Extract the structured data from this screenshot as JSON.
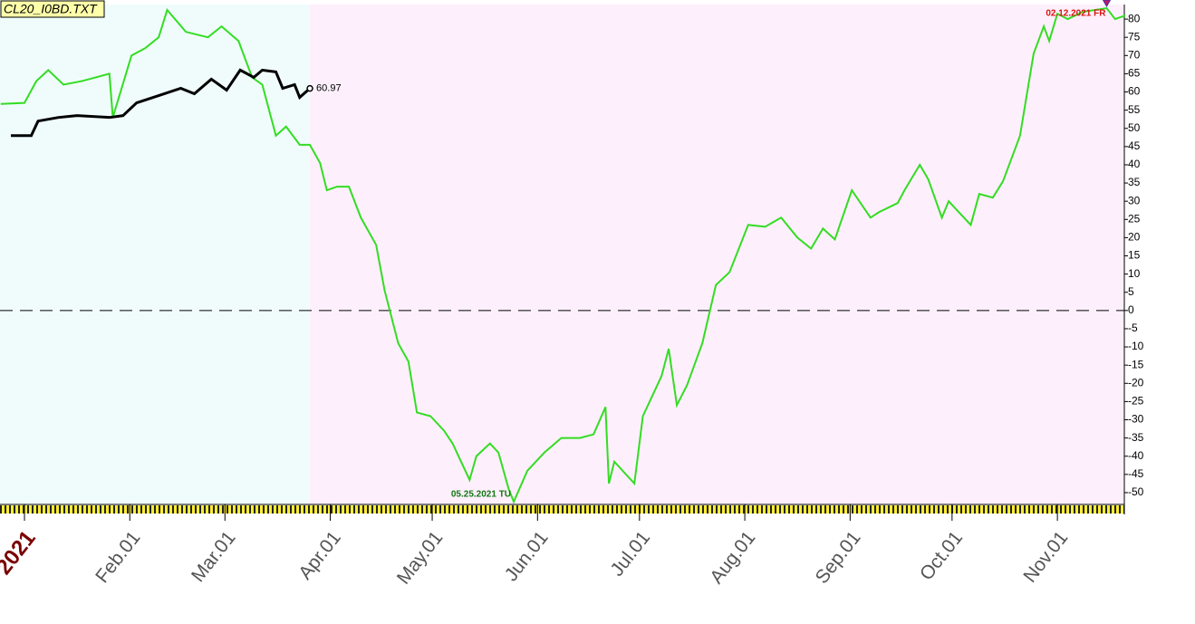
{
  "chart_data": {
    "type": "line",
    "title": "CL20_I0BD.TXT",
    "x": [
      -7,
      0,
      3.5,
      7,
      11.5,
      17,
      25,
      26,
      31.5,
      35.5,
      39.5,
      42,
      47.5,
      54,
      58,
      63,
      67,
      70,
      74,
      77,
      81,
      84,
      87,
      89,
      92,
      95.5,
      99,
      103.5,
      106,
      110,
      113,
      115.5,
      119.5,
      123.5,
      126,
      131,
      133,
      137,
      139.5,
      142.5,
      144,
      148,
      153,
      158,
      163.5,
      167.5,
      171,
      172,
      173.6,
      179.5,
      182,
      187.5,
      189.6,
      192,
      195,
      199.5,
      203.5,
      207.5,
      213,
      218,
      222.7,
      227.5,
      231.5,
      235,
      238.5,
      243.5,
      249,
      251.5,
      257,
      259,
      263.5,
      266,
      270,
      272,
      278.5,
      281,
      285,
      288,
      293,
      297,
      300,
      301.6,
      304,
      307,
      311.5,
      318.5,
      321,
      324
    ],
    "series": [
      {
        "color": "#33dd22",
        "values": [
          56.7,
          57,
          63,
          66,
          62,
          63,
          65,
          53,
          70,
          72,
          75,
          82.5,
          76.5,
          75,
          78,
          74,
          64,
          62,
          48,
          50.5,
          45.5,
          45.5,
          40.5,
          33,
          34,
          34,
          25.5,
          18,
          5.5,
          -9,
          -14,
          -28,
          -29,
          -33,
          -36.5,
          -46.5,
          -40,
          -36.5,
          -39,
          -49,
          -52.5,
          -44,
          -39,
          -35,
          -35,
          -34,
          -26.5,
          -47.5,
          -41.5,
          -47.5,
          -29,
          -18,
          -10.5,
          -26,
          -20.5,
          -9,
          7,
          10.5,
          23.5,
          23,
          25.5,
          20,
          17,
          22.5,
          19.5,
          33,
          25.5,
          27,
          29.5,
          33,
          40,
          36,
          25.5,
          30,
          23.5,
          32,
          31,
          35.5,
          48,
          70.5,
          78,
          74,
          81.5,
          80,
          82,
          83,
          80,
          81
        ]
      },
      {
        "color": "#000000",
        "x": [
          -4,
          2,
          4,
          10,
          15.5,
          25,
          29,
          33,
          39.5,
          46,
          50,
          55,
          59.5,
          63.5,
          67.5,
          70,
          74,
          76,
          79.5,
          81,
          84
        ],
        "values": [
          48,
          48,
          52,
          53,
          53.5,
          53,
          53.5,
          57,
          59,
          61,
          59.5,
          63.5,
          60.5,
          66,
          64,
          66,
          65.5,
          61,
          62,
          58.5,
          60.97
        ],
        "value_labels": [
          null,
          null,
          null,
          null,
          null,
          null,
          null,
          null,
          null,
          null,
          null,
          null,
          null,
          null,
          null,
          null,
          null,
          null,
          null,
          null,
          "60.97"
        ]
      }
    ],
    "annotations": [
      "02.12.2021 FR",
      "05.25.2021 TU"
    ],
    "regions": [
      {
        "from": -7.2,
        "to": 84,
        "color": "#f0fcfc"
      },
      {
        "from": 84,
        "to": 323.7,
        "color": "#fdf0fc"
      }
    ],
    "reference_line": 0,
    "xlim": [
      -7.2,
      323.7
    ],
    "ylim": [
      -53,
      84
    ],
    "xticks": [
      {
        "value": 0,
        "label": "2021"
      },
      {
        "value": 31,
        "label": "Feb.01"
      },
      {
        "value": 59,
        "label": "Mar.01"
      },
      {
        "value": 90,
        "label": "Apr.01"
      },
      {
        "value": 120,
        "label": "May.01"
      },
      {
        "value": 151,
        "label": "Jun.01"
      },
      {
        "value": 181,
        "label": "Jul.01"
      },
      {
        "value": 212,
        "label": "Aug.01"
      },
      {
        "value": 243,
        "label": "Sep.01"
      },
      {
        "value": 273,
        "label": "Oct.01"
      },
      {
        "value": 304,
        "label": "Nov.01"
      }
    ],
    "yticks": [
      -50,
      -45,
      -40,
      -35,
      -30,
      -25,
      -20,
      -15,
      -10,
      -5,
      0,
      5,
      10,
      15,
      20,
      25,
      30,
      35,
      40,
      45,
      50,
      55,
      60,
      65,
      70,
      75,
      80
    ]
  }
}
